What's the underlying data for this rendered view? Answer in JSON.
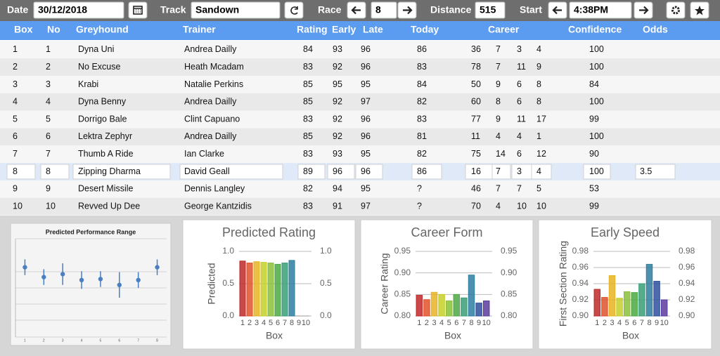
{
  "toolbar": [
    {
      "label": "Date",
      "value": "30/12/2018"
    },
    {
      "label": "Track",
      "value": "Sandown"
    },
    {
      "label": "Race",
      "value": "8"
    },
    {
      "label": "Distance",
      "value": "515"
    },
    {
      "label": "Start",
      "value": "4:38PM"
    }
  ],
  "table": {
    "header": [
      "Box",
      "No",
      "Greyhound",
      "Trainer",
      "Rating",
      "Early",
      "Late",
      "Today",
      "Career",
      "Confidence",
      "Odds"
    ],
    "rows": [
      [
        1,
        1,
        "Dyna Uni",
        "Andrea Dailly",
        84,
        93,
        96,
        86,
        36,
        7,
        3,
        4,
        100
      ],
      [
        2,
        2,
        "No Excuse",
        "Heath Mcadam",
        83,
        92,
        96,
        83,
        78,
        7,
        11,
        9,
        100
      ],
      [
        3,
        3,
        "Krabi",
        "Natalie Perkins",
        85,
        95,
        95,
        84,
        50,
        9,
        6,
        8,
        84
      ],
      [
        4,
        4,
        "Dyna Benny",
        "Andrea Dailly",
        85,
        92,
        97,
        82,
        60,
        8,
        6,
        8,
        100
      ],
      [
        5,
        5,
        "Dorrigo Bale",
        "Clint Capuano",
        83,
        92,
        96,
        83,
        77,
        9,
        11,
        17,
        99
      ],
      [
        6,
        6,
        "Lektra Zephyr",
        "Andrea Dailly",
        85,
        92,
        96,
        81,
        11,
        4,
        4,
        1,
        100
      ],
      [
        7,
        7,
        "Thumb A Ride",
        "Ian Clarke",
        83,
        93,
        95,
        82,
        75,
        14,
        6,
        12,
        90
      ],
      [
        8,
        8,
        "Zipping Dharma",
        "David Geall",
        89,
        96,
        96,
        86,
        16,
        7,
        3,
        4,
        100,
        3.5
      ],
      [
        9,
        9,
        "Desert Missile",
        "Dennis Langley",
        82,
        94,
        95,
        "?",
        46,
        7,
        7,
        5,
        53
      ],
      [
        10,
        10,
        "Revved Up Dee",
        "George Kantzidis",
        83,
        91,
        97,
        "?",
        70,
        4,
        10,
        10,
        99
      ]
    ],
    "selected_row": 7
  },
  "chart_data": [
    {
      "type": "errorbar",
      "title": "Predicted Performance Range",
      "categories": [
        "1",
        "2",
        "3",
        "4",
        "5",
        "6",
        "7",
        "8"
      ],
      "values": [
        7.1,
        6.1,
        6.4,
        5.8,
        5.9,
        5.3,
        5.8,
        7.1
      ],
      "errors": [
        0.8,
        0.8,
        1.1,
        0.9,
        0.8,
        1.3,
        0.8,
        0.8
      ],
      "color": "#4a7fc1",
      "ylim": [
        0,
        10
      ],
      "grid": true
    },
    {
      "type": "bar",
      "title": "Predicted Rating",
      "x_label": "Box",
      "y_label": "Predicted",
      "categories": [
        "1",
        "2",
        "3",
        "4",
        "5",
        "6",
        "7",
        "8",
        "9",
        "10"
      ],
      "values": [
        0.85,
        0.82,
        0.84,
        0.83,
        0.82,
        0.8,
        0.82,
        0.86,
        null,
        null
      ],
      "colors": [
        "#c0282a",
        "#e0522a",
        "#e6b422",
        "#c6cf2a",
        "#8cbf3a",
        "#4ea845",
        "#3a9e78",
        "#2e7ea0",
        "#2f4f9e",
        "#5a3b9e"
      ],
      "ylim": [
        0,
        1
      ],
      "yticks": [
        {
          "value": 0,
          "label": "0.0"
        },
        0.5,
        {
          "value": 1,
          "label": "1.0"
        }
      ],
      "y2ticks": [
        {
          "value": 0,
          "label": "0.0"
        },
        0.5,
        {
          "value": 1,
          "label": "1.0"
        }
      ],
      "grid": true
    },
    {
      "type": "bar",
      "title": "Career Form",
      "x_label": "Box",
      "y_label": "Career Rating",
      "categories": [
        "1",
        "2",
        "3",
        "4",
        "5",
        "6",
        "7",
        "8",
        "9",
        "10"
      ],
      "values": [
        0.848,
        0.838,
        0.855,
        0.85,
        0.835,
        0.85,
        0.842,
        0.895,
        0.83,
        0.835
      ],
      "colors": [
        "#c0282a",
        "#e0522a",
        "#e6b422",
        "#c6cf2a",
        "#8cbf3a",
        "#4ea845",
        "#3a9e78",
        "#2e7ea0",
        "#2f4f9e",
        "#5a3b9e"
      ],
      "ylim": [
        0.8,
        0.95
      ],
      "yticks": [
        {
          "value": 0.8,
          "label": "0.80"
        },
        0.85,
        {
          "value": 0.9,
          "label": "0.90"
        },
        0.95
      ],
      "y2ticks": [
        {
          "value": 0.8,
          "label": "0.80"
        },
        0.85,
        {
          "value": 0.9,
          "label": "0.90"
        },
        0.95
      ],
      "grid": true
    },
    {
      "type": "bar",
      "title": "Early Speed",
      "x_label": "Box",
      "y_label": "First Section Rating",
      "categories": [
        "1",
        "2",
        "3",
        "4",
        "5",
        "6",
        "7",
        "8",
        "9",
        "10"
      ],
      "values": [
        0.933,
        0.923,
        0.95,
        0.922,
        0.93,
        0.929,
        0.94,
        0.964,
        0.943,
        0.92
      ],
      "colors": [
        "#c0282a",
        "#e0522a",
        "#e6b422",
        "#c6cf2a",
        "#8cbf3a",
        "#4ea845",
        "#3a9e78",
        "#2e7ea0",
        "#2f4f9e",
        "#5a3b9e"
      ],
      "ylim": [
        0.9,
        0.98
      ],
      "yticks": [
        {
          "value": 0.9,
          "label": "0.90"
        },
        0.92,
        0.94,
        0.96,
        0.98
      ],
      "y2ticks": [
        {
          "value": 0.9,
          "label": "0.90"
        },
        0.92,
        0.94,
        0.96,
        0.98
      ],
      "grid": true
    }
  ]
}
